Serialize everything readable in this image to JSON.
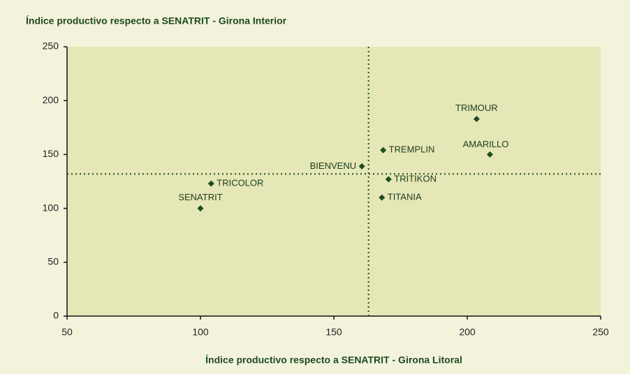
{
  "chart_data": {
    "type": "scatter",
    "title": "Índice productivo respecto a SENATRIT - Girona Interior",
    "x_label": "Índice productivo respecto a SENATRIT - Girona Litoral",
    "labels": [
      "SENATRIT",
      "TRICOLOR",
      "BIENVENU",
      "TREMPLIN",
      "TRITIKON",
      "TITANIA",
      "TRIMOUR",
      "AMARILLO"
    ],
    "x": [
      100,
      104,
      160.5,
      168.5,
      170.5,
      168,
      203.5,
      208.5
    ],
    "values": [
      100,
      123,
      139,
      154,
      127,
      110,
      183,
      150
    ],
    "color": "#1f4a1f",
    "xlim": [
      50,
      250
    ],
    "xticks": [
      50,
      100,
      150,
      200,
      250
    ],
    "ylim": [
      0,
      250
    ],
    "yticks": [
      0,
      50,
      100,
      150,
      200,
      250
    ],
    "reference_x": 163,
    "reference_y": 132
  }
}
